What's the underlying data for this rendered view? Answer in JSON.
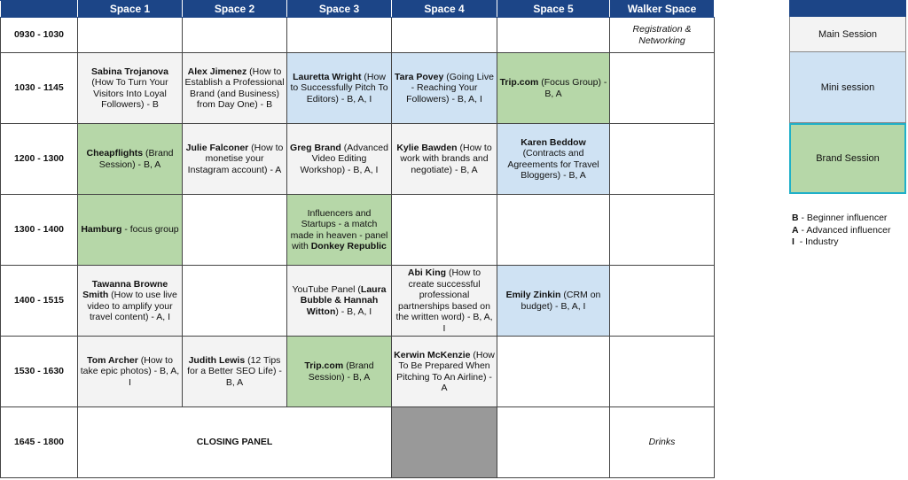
{
  "header": [
    "",
    "Space 1",
    "Space 2",
    "Space 3",
    "Space 4",
    "Space 5",
    "Walker Space"
  ],
  "colors": {
    "header": "#1c4587",
    "main": "#f3f3f3",
    "mini": "#cfe2f3",
    "brand": "#b6d7a8",
    "blocked": "#999999"
  },
  "rows": [
    {
      "time": "0930 - 1030",
      "cells": [
        {
          "type": "empty",
          "parts": []
        },
        {
          "type": "empty",
          "parts": []
        },
        {
          "type": "empty",
          "parts": []
        },
        {
          "type": "empty",
          "parts": []
        },
        {
          "type": "empty",
          "parts": []
        },
        {
          "type": "empty",
          "italic": true,
          "parts": [
            {
              "b": false,
              "t": "Registration & Networking"
            }
          ]
        }
      ]
    },
    {
      "time": "1030 - 1145",
      "cells": [
        {
          "type": "main",
          "parts": [
            {
              "b": true,
              "t": "Sabina Trojanova"
            },
            {
              "b": false,
              "t": " (How To Turn Your Visitors Into Loyal Followers) - B"
            }
          ]
        },
        {
          "type": "main",
          "parts": [
            {
              "b": true,
              "t": "Alex Jimenez"
            },
            {
              "b": false,
              "t": " (How to Establish a Professional Brand (and Business) from Day One) - B"
            }
          ]
        },
        {
          "type": "mini",
          "parts": [
            {
              "b": true,
              "t": "Lauretta Wright"
            },
            {
              "b": false,
              "t": " (How to Successfully Pitch To Editors) - B, A, I"
            }
          ]
        },
        {
          "type": "mini",
          "parts": [
            {
              "b": true,
              "t": "Tara Povey"
            },
            {
              "b": false,
              "t": " (Going Live - Reaching Your Followers) - B, A, I"
            }
          ]
        },
        {
          "type": "brand",
          "parts": [
            {
              "b": true,
              "t": "Trip.com"
            },
            {
              "b": false,
              "t": " (Focus Group) - B, A"
            }
          ]
        },
        {
          "type": "empty",
          "parts": []
        }
      ]
    },
    {
      "time": "1200 - 1300",
      "cells": [
        {
          "type": "brand",
          "parts": [
            {
              "b": true,
              "t": "Cheapflights"
            },
            {
              "b": false,
              "t": " (Brand Session) - B, A"
            }
          ]
        },
        {
          "type": "main",
          "parts": [
            {
              "b": true,
              "t": "Julie Falconer"
            },
            {
              "b": false,
              "t": " (How to monetise your Instagram account) - A"
            }
          ]
        },
        {
          "type": "main",
          "parts": [
            {
              "b": true,
              "t": "Greg Brand"
            },
            {
              "b": false,
              "t": " (Advanced Video Editing Workshop) - B, A, I"
            }
          ]
        },
        {
          "type": "main",
          "parts": [
            {
              "b": true,
              "t": "Kylie Bawden"
            },
            {
              "b": false,
              "t": " (How to work with brands and negotiate) - B, A"
            }
          ]
        },
        {
          "type": "mini",
          "parts": [
            {
              "b": true,
              "t": "Karen Beddow"
            },
            {
              "b": false,
              "t": " (Contracts and Agreements for Travel Bloggers) - B, A"
            }
          ]
        },
        {
          "type": "empty",
          "parts": []
        }
      ]
    },
    {
      "time": "1300 - 1400",
      "cells": [
        {
          "type": "brand",
          "parts": [
            {
              "b": true,
              "t": "Hamburg"
            },
            {
              "b": false,
              "t": " - focus group"
            }
          ]
        },
        {
          "type": "empty",
          "parts": []
        },
        {
          "type": "brand",
          "parts": [
            {
              "b": false,
              "t": "Influencers and Startups - a match made in heaven - panel with "
            },
            {
              "b": true,
              "t": "Donkey Republic"
            }
          ]
        },
        {
          "type": "empty",
          "parts": []
        },
        {
          "type": "empty",
          "parts": []
        },
        {
          "type": "empty",
          "parts": []
        }
      ]
    },
    {
      "time": "1400 - 1515",
      "cells": [
        {
          "type": "main",
          "parts": [
            {
              "b": true,
              "t": "Tawanna Browne Smith"
            },
            {
              "b": false,
              "t": " (How to use live video to amplify your travel content) - A, I"
            }
          ]
        },
        {
          "type": "empty",
          "parts": []
        },
        {
          "type": "main",
          "parts": [
            {
              "b": false,
              "t": "YouTube Panel ("
            },
            {
              "b": true,
              "t": "Laura Bubble & Hannah Witton"
            },
            {
              "b": false,
              "t": ") - B, A, I"
            }
          ]
        },
        {
          "type": "main",
          "parts": [
            {
              "b": true,
              "t": "Abi King"
            },
            {
              "b": false,
              "t": " (How to create successful professional partnerships based on the written word) - B, A, I"
            }
          ]
        },
        {
          "type": "mini",
          "parts": [
            {
              "b": true,
              "t": "Emily Zinkin"
            },
            {
              "b": false,
              "t": " (CRM on budget) - B, A, I"
            }
          ]
        },
        {
          "type": "empty",
          "parts": []
        }
      ]
    },
    {
      "time": "1530 - 1630",
      "cells": [
        {
          "type": "main",
          "parts": [
            {
              "b": true,
              "t": "Tom Archer"
            },
            {
              "b": false,
              "t": " (How to take epic photos) - B, A, I"
            }
          ]
        },
        {
          "type": "main",
          "parts": [
            {
              "b": true,
              "t": "Judith Lewis"
            },
            {
              "b": false,
              "t": " (12 Tips for a Better SEO Life) - B, A"
            }
          ]
        },
        {
          "type": "brand",
          "parts": [
            {
              "b": true,
              "t": "Trip.com"
            },
            {
              "b": false,
              "t": " (Brand Session) - B, A"
            }
          ]
        },
        {
          "type": "main",
          "parts": [
            {
              "b": true,
              "t": "Kerwin McKenzie"
            },
            {
              "b": false,
              "t": " (How To Be Prepared When Pitching To An Airline) - A"
            }
          ]
        },
        {
          "type": "empty",
          "parts": []
        },
        {
          "type": "empty",
          "parts": []
        }
      ]
    },
    {
      "time": "1645 - 1800",
      "cells": [
        {
          "type": "empty",
          "span": 3,
          "parts": [
            {
              "b": true,
              "t": "CLOSING PANEL"
            }
          ]
        },
        {
          "type": "blocked",
          "parts": []
        },
        {
          "type": "empty",
          "parts": []
        },
        {
          "type": "empty",
          "italic": true,
          "parts": [
            {
              "b": false,
              "t": "Drinks"
            }
          ]
        }
      ]
    }
  ],
  "legend": {
    "session_types": [
      {
        "type": "main",
        "label": "Main Session"
      },
      {
        "type": "mini",
        "label": "Mini session"
      },
      {
        "type": "brand",
        "label": "Brand Session"
      }
    ],
    "audience_codes": [
      {
        "code": "B",
        "label": " - Beginner influencer"
      },
      {
        "code": "A",
        "label": " - Advanced influencer"
      },
      {
        "code": "I",
        "label": "  - Industry"
      }
    ]
  }
}
